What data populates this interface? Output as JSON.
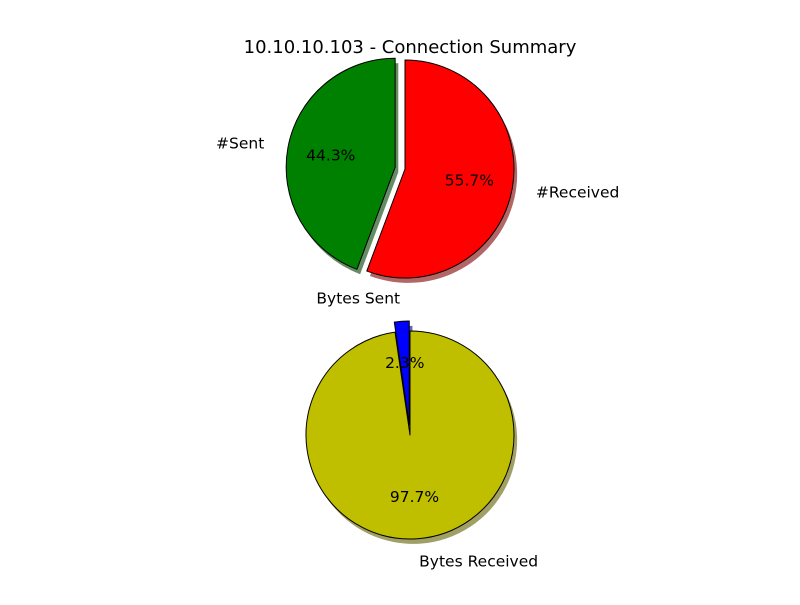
{
  "chart_data": [
    {
      "type": "pie",
      "title": "10.10.10.103 - Connection Summary",
      "slices": [
        {
          "label": "#Sent",
          "value": 44.3,
          "pct_label": "44.3%",
          "color": "#008000",
          "exploded": true
        },
        {
          "label": "#Received",
          "value": 55.7,
          "pct_label": "55.7%",
          "color": "#ff0000",
          "exploded": false
        }
      ],
      "shadow": true,
      "start_angle_deg": 90,
      "legend": "none"
    },
    {
      "type": "pie",
      "title": "",
      "slices": [
        {
          "label": "Bytes Sent",
          "value": 2.3,
          "pct_label": "2.3%",
          "color": "#0000ff",
          "exploded": true
        },
        {
          "label": "Bytes Received",
          "value": 97.7,
          "pct_label": "97.7%",
          "color": "#bfbf00",
          "exploded": false
        }
      ],
      "shadow": true,
      "start_angle_deg": 90,
      "legend": "none"
    }
  ]
}
